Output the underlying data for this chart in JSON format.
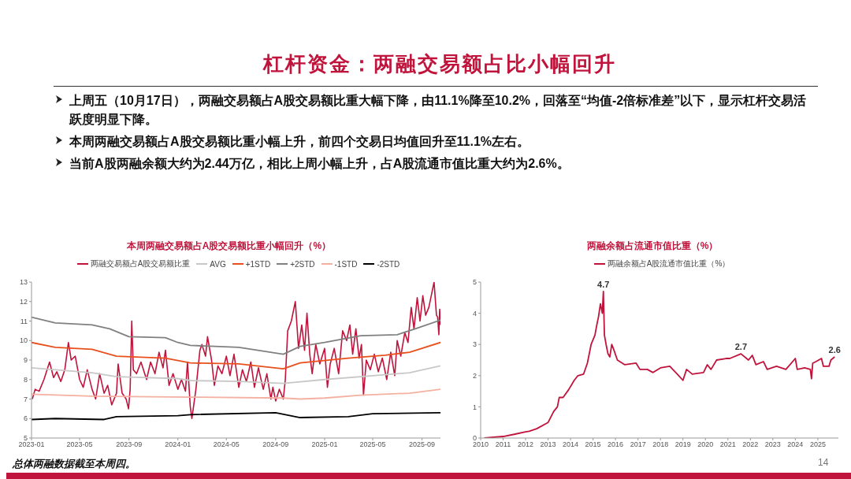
{
  "chart_data": [
    {
      "type": "other",
      "title": "杠杆资金：两融交易额占比小幅回升",
      "annotations": [
        "上周五（10月17日），两融交易额占A股交易额比重大幅下降，由11.1%降至10.2%，回落至“均值-2倍标准差”以下，显示杠杆交易活跃度明显下降。",
        "本周两融交易额占A股交易额比重小幅上升，前四个交易日均值回升至11.1%左右。",
        "当前A股两融余额大约为2.44万亿，相比上周小幅上升，占A股流通市值比重大约为2.6%。",
        "总体两融数据截至本周四。",
        "14"
      ]
    },
    {
      "type": "line",
      "title": "本周两融交易额占A股交易额比重小幅回升（%）",
      "legend": "top",
      "xlim": [
        "2023-01",
        "2025-10-17"
      ],
      "xticks": [
        "2023-01",
        "2023-05",
        "2023-09",
        "2024-01",
        "2024-05",
        "2024-09",
        "2025-01",
        "2025-05",
        "2025-09"
      ],
      "ylim": [
        5,
        13
      ],
      "yticks": [
        5,
        6,
        7,
        8,
        9,
        10,
        11,
        12,
        13
      ],
      "series": [
        {
          "name": "两融交易额占A股交易额比重",
          "color": "#c0143c",
          "x": [
            "2023-01-03",
            "2023-01-10",
            "2023-01-20",
            "2023-02-01",
            "2023-02-15",
            "2023-02-25",
            "2023-03-05",
            "2023-03-15",
            "2023-03-25",
            "2023-04-03",
            "2023-04-10",
            "2023-04-20",
            "2023-05-01",
            "2023-05-10",
            "2023-05-20",
            "2023-06-01",
            "2023-06-10",
            "2023-06-20",
            "2023-07-01",
            "2023-07-10",
            "2023-07-20",
            "2023-08-01",
            "2023-08-05",
            "2023-08-15",
            "2023-08-25",
            "2023-08-31",
            "2023-09-04",
            "2023-09-08",
            "2023-09-12",
            "2023-09-20",
            "2023-10-01",
            "2023-10-15",
            "2023-10-25",
            "2023-11-05",
            "2023-11-15",
            "2023-11-25",
            "2023-12-01",
            "2023-12-10",
            "2023-12-20",
            "2024-01-01",
            "2024-01-10",
            "2024-01-20",
            "2024-01-25",
            "2024-02-01",
            "2024-02-05",
            "2024-02-15",
            "2024-02-25",
            "2024-03-01",
            "2024-03-10",
            "2024-03-15",
            "2024-03-25",
            "2024-04-01",
            "2024-04-10",
            "2024-04-20",
            "2024-05-01",
            "2024-05-10",
            "2024-05-20",
            "2024-06-01",
            "2024-06-10",
            "2024-06-20",
            "2024-07-01",
            "2024-07-10",
            "2024-07-20",
            "2024-08-01",
            "2024-08-10",
            "2024-08-20",
            "2024-08-25",
            "2024-09-01",
            "2024-09-10",
            "2024-09-20",
            "2024-09-25",
            "2024-10-01",
            "2024-10-10",
            "2024-10-20",
            "2024-10-28",
            "2024-11-05",
            "2024-11-12",
            "2024-11-18",
            "2024-11-25",
            "2024-12-01",
            "2024-12-10",
            "2024-12-20",
            "2025-01-01",
            "2025-01-08",
            "2025-01-15",
            "2025-01-25",
            "2025-02-05",
            "2025-02-15",
            "2025-02-25",
            "2025-03-05",
            "2025-03-12",
            "2025-03-20",
            "2025-03-28",
            "2025-04-03",
            "2025-04-08",
            "2025-04-15",
            "2025-04-25",
            "2025-05-05",
            "2025-05-15",
            "2025-05-25",
            "2025-06-05",
            "2025-06-15",
            "2025-06-25",
            "2025-07-01",
            "2025-07-10",
            "2025-07-20",
            "2025-07-28",
            "2025-08-05",
            "2025-08-12",
            "2025-08-20",
            "2025-08-27",
            "2025-09-03",
            "2025-09-10",
            "2025-09-18",
            "2025-09-25",
            "2025-10-01",
            "2025-10-07",
            "2025-10-10",
            "2025-10-13",
            "2025-10-15",
            "2025-10-17"
          ],
          "values": [
            7.0,
            7.5,
            7.4,
            8.0,
            8.9,
            8.1,
            8.4,
            7.9,
            8.5,
            9.9,
            9.0,
            9.2,
            8.0,
            7.6,
            8.5,
            7.5,
            7.0,
            8.3,
            7.3,
            7.7,
            6.7,
            7.3,
            8.8,
            7.3,
            7.0,
            6.5,
            7.5,
            11.0,
            8.5,
            8.3,
            8.9,
            8.0,
            8.9,
            8.3,
            9.4,
            8.6,
            9.5,
            7.7,
            8.3,
            7.5,
            8.0,
            7.4,
            8.9,
            6.6,
            6.0,
            7.5,
            9.5,
            9.8,
            9.2,
            10.2,
            9.0,
            7.7,
            8.7,
            8.3,
            9.2,
            8.2,
            9.3,
            7.6,
            8.5,
            7.9,
            8.9,
            7.6,
            8.6,
            7.5,
            8.3,
            7.0,
            7.6,
            6.9,
            7.5,
            7.0,
            8.0,
            10.5,
            11.0,
            12.0,
            9.6,
            10.8,
            9.5,
            11.4,
            9.3,
            8.3,
            9.8,
            8.8,
            9.6,
            7.6,
            8.8,
            9.6,
            8.3,
            10.5,
            10.0,
            10.8,
            9.3,
            10.6,
            9.1,
            9.8,
            7.2,
            9.0,
            8.5,
            9.3,
            8.4,
            9.1,
            8.0,
            9.4,
            8.2,
            10.0,
            9.2,
            10.4,
            9.9,
            11.7,
            10.6,
            12.2,
            11.0,
            12.3,
            11.3,
            11.7,
            12.4,
            13.0,
            11.3,
            11.2,
            10.3,
            11.6,
            10.8
          ]
        },
        {
          "name": "AVG",
          "color": "#c8c8c8",
          "x": [
            "2023-01",
            "2023-06",
            "2023-08",
            "2024-01",
            "2024-02",
            "2024-06",
            "2024-09-20",
            "2025-01",
            "2025-06",
            "2025-08",
            "2025-10-17"
          ],
          "values": [
            8.6,
            8.35,
            8.15,
            8.05,
            7.95,
            7.9,
            7.8,
            8.0,
            8.25,
            8.35,
            8.7
          ]
        },
        {
          "name": "+1STD",
          "color": "#e8501e",
          "x": [
            "2023-01",
            "2023-03",
            "2023-06",
            "2023-08",
            "2023-12",
            "2024-02",
            "2024-06",
            "2024-09-20",
            "2024-11",
            "2025-03",
            "2025-06",
            "2025-08",
            "2025-10-17"
          ],
          "values": [
            9.9,
            9.65,
            9.55,
            9.2,
            9.1,
            8.85,
            8.8,
            8.55,
            8.85,
            9.1,
            9.25,
            9.4,
            9.9
          ]
        },
        {
          "name": "+2STD",
          "color": "#808080",
          "x": [
            "2023-01",
            "2023-03",
            "2023-06",
            "2023-07-15",
            "2023-09",
            "2023-12",
            "2024-01",
            "2024-02",
            "2024-06",
            "2024-09-20",
            "2024-11",
            "2025-01",
            "2025-04",
            "2025-07",
            "2025-08-15",
            "2025-10-17"
          ],
          "values": [
            11.2,
            10.9,
            10.8,
            10.6,
            10.2,
            10.15,
            9.9,
            9.75,
            9.65,
            9.3,
            9.7,
            9.9,
            10.25,
            10.3,
            10.6,
            11.05
          ]
        },
        {
          "name": "-1STD",
          "color": "#f4b0a0",
          "x": [
            "2023-01",
            "2023-06",
            "2024-02",
            "2024-09-20",
            "2024-11",
            "2025-01",
            "2025-04",
            "2025-08",
            "2025-10-17"
          ],
          "values": [
            7.25,
            7.15,
            7.1,
            7.05,
            7.0,
            7.05,
            7.2,
            7.3,
            7.5
          ]
        },
        {
          "name": "-2STD",
          "color": "#000000",
          "x": [
            "2023-01",
            "2023-03",
            "2023-07",
            "2023-08",
            "2024-01",
            "2024-02",
            "2024-09",
            "2024-11",
            "2025-03",
            "2025-05",
            "2025-10-17"
          ],
          "values": [
            5.95,
            6.0,
            5.95,
            6.1,
            6.15,
            6.2,
            6.3,
            6.05,
            6.1,
            6.25,
            6.3
          ]
        }
      ]
    },
    {
      "type": "line",
      "title": "两融余额占流通市值比重（%）",
      "legend": "top",
      "xlim": [
        "2010",
        "2025-12"
      ],
      "xticks": [
        "2010",
        "2011",
        "2012",
        "2013",
        "2014",
        "2015",
        "2016",
        "2017",
        "2018",
        "2019",
        "2020",
        "2021",
        "2022",
        "2023",
        "2024",
        "2025"
      ],
      "ylim": [
        0,
        5
      ],
      "yticks": [
        0,
        1,
        2,
        3,
        4,
        5
      ],
      "annotations": [
        {
          "text": "4.7",
          "x": "2015-06-18",
          "y": 4.7
        },
        {
          "text": "2.7",
          "x": "2021-08",
          "y": 2.7
        },
        {
          "text": "2.6",
          "x": "2025-10",
          "y": 2.6
        }
      ],
      "series": [
        {
          "name": "两融余额占A股流通市值比重（%）",
          "color": "#c0143c",
          "x": [
            "2010-03",
            "2011-01",
            "2011-07",
            "2012-01",
            "2012-03",
            "2012-07",
            "2013-01",
            "2013-04",
            "2013-06",
            "2013-07",
            "2013-09",
            "2013-12",
            "2014-03",
            "2014-05",
            "2014-08",
            "2014-10",
            "2014-12",
            "2015-02",
            "2015-03",
            "2015-04",
            "2015-05",
            "2015-06-01",
            "2015-06-18",
            "2015-07-05",
            "2015-08",
            "2015-09",
            "2015-10",
            "2015-11",
            "2015-12",
            "2016-02",
            "2016-06",
            "2016-12",
            "2017-02",
            "2017-06",
            "2017-09",
            "2018-01",
            "2018-06",
            "2018-10",
            "2019-01",
            "2019-03",
            "2019-06",
            "2019-12",
            "2020-02",
            "2020-04",
            "2020-07",
            "2020-12",
            "2021-02",
            "2021-08",
            "2021-12",
            "2022-02",
            "2022-04",
            "2022-08",
            "2022-10",
            "2023-03",
            "2023-08",
            "2024-01",
            "2024-02",
            "2024-06",
            "2024-09",
            "2024-09-20",
            "2024-10-10",
            "2024-12",
            "2025-03",
            "2025-04",
            "2025-07",
            "2025-08",
            "2025-10"
          ],
          "values": [
            0,
            0.05,
            0.12,
            0.2,
            0.22,
            0.3,
            0.5,
            0.85,
            1.0,
            1.3,
            1.3,
            1.55,
            1.85,
            2.0,
            2.05,
            2.4,
            3.0,
            3.3,
            3.6,
            3.9,
            4.3,
            4.0,
            4.7,
            3.3,
            3.0,
            2.7,
            2.6,
            3.0,
            2.85,
            2.5,
            2.35,
            2.4,
            2.2,
            2.2,
            2.1,
            2.25,
            2.3,
            2.05,
            1.85,
            2.2,
            2.05,
            2.1,
            2.35,
            2.2,
            2.5,
            2.55,
            2.55,
            2.7,
            2.5,
            2.65,
            2.35,
            2.45,
            2.2,
            2.3,
            2.2,
            2.55,
            2.2,
            2.25,
            2.2,
            1.9,
            2.4,
            2.45,
            2.55,
            2.3,
            2.3,
            2.5,
            2.6
          ]
        }
      ]
    }
  ]
}
